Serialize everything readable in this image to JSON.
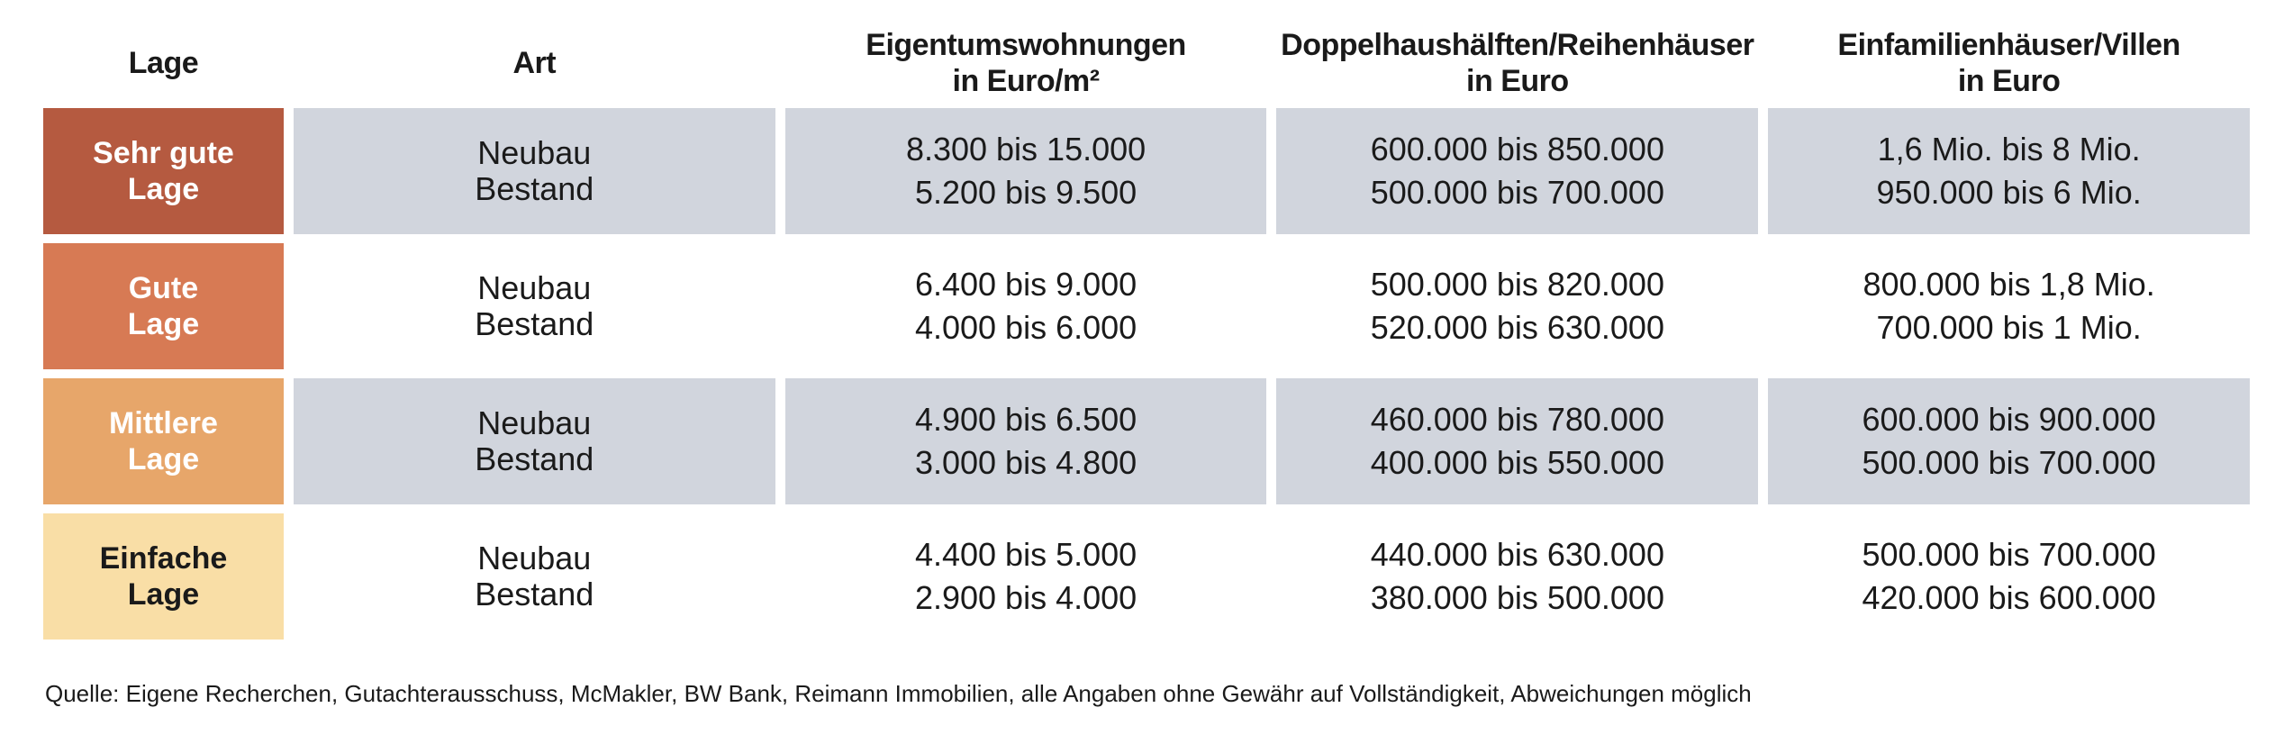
{
  "header": {
    "lage": "Lage",
    "art": "Art",
    "etw_line1": "Eigentumswohnungen",
    "etw_line2": "in Euro/m²",
    "dh_line1": "Doppelhaushälften/Reihenhäuser",
    "dh_line2": "in Euro",
    "efh_line1": "Einfamilienhäuser/Villen",
    "efh_line2": "in Euro"
  },
  "rows": [
    {
      "lage_line1": "Sehr gute",
      "lage_line2": "Lage",
      "lage_color": "#b55a40",
      "lage_text_color": "#ffffff",
      "art_line1": "Neubau",
      "art_line2": "Bestand",
      "etw_line1": "8.300 bis 15.000",
      "etw_line2": "5.200 bis 9.500",
      "dh_line1": "600.000 bis 850.000",
      "dh_line2": "500.000 bis 700.000",
      "efh_line1": "1,6 Mio. bis 8 Mio.",
      "efh_line2": "950.000 bis 6 Mio."
    },
    {
      "lage_line1": "Gute",
      "lage_line2": "Lage",
      "lage_color": "#d77a54",
      "lage_text_color": "#ffffff",
      "art_line1": "Neubau",
      "art_line2": "Bestand",
      "etw_line1": "6.400 bis 9.000",
      "etw_line2": "4.000 bis 6.000",
      "dh_line1": "500.000 bis 820.000",
      "dh_line2": "520.000 bis 630.000",
      "efh_line1": "800.000 bis 1,8 Mio.",
      "efh_line2": "700.000 bis 1 Mio."
    },
    {
      "lage_line1": "Mittlere",
      "lage_line2": "Lage",
      "lage_color": "#e7a66a",
      "lage_text_color": "#ffffff",
      "art_line1": "Neubau",
      "art_line2": "Bestand",
      "etw_line1": "4.900 bis 6.500",
      "etw_line2": "3.000 bis 4.800",
      "dh_line1": "460.000 bis 780.000",
      "dh_line2": "400.000 bis 550.000",
      "efh_line1": "600.000 bis 900.000",
      "efh_line2": "500.000 bis 700.000"
    },
    {
      "lage_line1": "Einfache",
      "lage_line2": "Lage",
      "lage_color": "#f9dea6",
      "lage_text_color": "#1a1a1a",
      "art_line1": "Neubau",
      "art_line2": "Bestand",
      "etw_line1": "4.400 bis 5.000",
      "etw_line2": "2.900 bis 4.000",
      "dh_line1": "440.000 bis 630.000",
      "dh_line2": "380.000 bis 500.000",
      "efh_line1": "500.000 bis 700.000",
      "efh_line2": "420.000 bis 600.000"
    }
  ],
  "colors": {
    "shaded_cell": "#d1d5dd",
    "plain_cell": "#ffffff"
  },
  "source": "Quelle: Eigene Recherchen, Gutachterausschuss, McMakler, BW Bank, Reimann Immobilien, alle Angaben ohne Gewähr auf Vollständigkeit, Abweichungen möglich"
}
